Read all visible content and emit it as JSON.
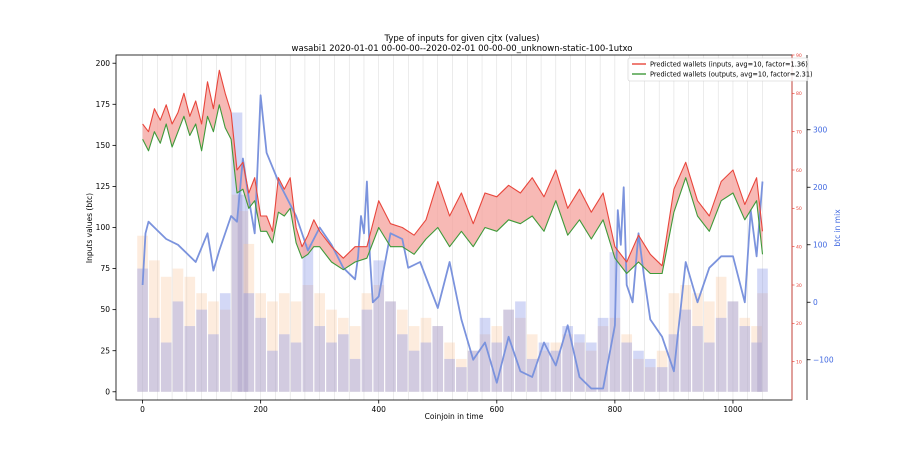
{
  "chart_data": {
    "type": "line",
    "title": "Type of inputs for given cjtx (values)",
    "subtitle": "wasabi1 2020-01-01 00-00-00--2020-02-01 00-00-00_unknown-static-100-1utxo",
    "xlabel": "Coinjoin in time",
    "ylabel": "Inputs values (btc)",
    "y2label": "btc in mix",
    "xlim": [
      -45,
      1100
    ],
    "ylim": [
      -5,
      205
    ],
    "y2lim": [
      -170,
      430
    ],
    "y3lim": [
      0,
      90
    ],
    "x_ticks": [
      "0",
      "200",
      "400",
      "600",
      "800",
      "1000"
    ],
    "y_ticks": [
      "0",
      "25",
      "50",
      "75",
      "100",
      "125",
      "150",
      "175",
      "200"
    ],
    "y2_ticks": [
      "−100",
      "0",
      "100",
      "200",
      "300"
    ],
    "y3_ticks": [
      "10",
      "20",
      "30",
      "40",
      "50",
      "60",
      "70",
      "80",
      "90"
    ],
    "grid": "vertical",
    "legend_position": "top-right",
    "legend": [
      "Predicted wallets (inputs, avg=10, factor=1.36)",
      "Predicted wallets (outputs, avg=10, factor=2.31)"
    ],
    "colors": {
      "inputs": "#e8463c",
      "outputs": "#3f9a3a",
      "fill": "#f4a29c",
      "btc_in_mix": "#7b93dd",
      "bars": "#8090e6",
      "bars_light": "#f8c9a0",
      "grid": "#d8d8d8"
    },
    "series": [
      {
        "role": "inputs",
        "axis": "right-inner",
        "x": [
          0,
          10,
          20,
          30,
          40,
          50,
          60,
          70,
          80,
          90,
          100,
          110,
          120,
          130,
          140,
          150,
          160,
          170,
          180,
          190,
          200,
          210,
          220,
          230,
          240,
          250,
          260,
          270,
          280,
          290,
          300,
          320,
          340,
          360,
          380,
          400,
          420,
          440,
          460,
          480,
          500,
          520,
          540,
          560,
          580,
          600,
          620,
          640,
          660,
          680,
          700,
          720,
          740,
          760,
          780,
          800,
          820,
          840,
          860,
          880,
          900,
          920,
          940,
          960,
          980,
          1000,
          1020,
          1040,
          1050
        ],
        "values": [
          72,
          70,
          76,
          73,
          77,
          72,
          75,
          80,
          74,
          78,
          72,
          83,
          76,
          86,
          80,
          75,
          60,
          62,
          54,
          58,
          48,
          48,
          44,
          58,
          55,
          58,
          45,
          40,
          43,
          47,
          44,
          40,
          37,
          40,
          40,
          52,
          46,
          45,
          43,
          47,
          57,
          48,
          54,
          46,
          54,
          53,
          56,
          54,
          58,
          53,
          60,
          50,
          55,
          49,
          54,
          40,
          36,
          43,
          38,
          35,
          55,
          62,
          52,
          48,
          57,
          60,
          51,
          58,
          44
        ]
      },
      {
        "role": "outputs",
        "axis": "right-inner",
        "x": [
          0,
          10,
          20,
          30,
          40,
          50,
          60,
          70,
          80,
          90,
          100,
          110,
          120,
          130,
          140,
          150,
          160,
          170,
          180,
          190,
          200,
          210,
          220,
          230,
          240,
          250,
          260,
          270,
          280,
          290,
          300,
          320,
          340,
          360,
          380,
          400,
          420,
          440,
          460,
          480,
          500,
          520,
          540,
          560,
          580,
          600,
          620,
          640,
          660,
          680,
          700,
          720,
          740,
          760,
          780,
          800,
          820,
          840,
          860,
          880,
          900,
          920,
          940,
          960,
          980,
          1000,
          1020,
          1040,
          1050
        ],
        "values": [
          68,
          65,
          70,
          67,
          72,
          66,
          70,
          74,
          69,
          72,
          65,
          74,
          70,
          77,
          71,
          68,
          54,
          55,
          50,
          52,
          44,
          44,
          41,
          49,
          48,
          50,
          41,
          37,
          38,
          40,
          40,
          36,
          34,
          36,
          37,
          45,
          40,
          40,
          38,
          42,
          45,
          40,
          44,
          40,
          45,
          44,
          47,
          46,
          48,
          44,
          52,
          43,
          47,
          42,
          47,
          37,
          33,
          36,
          33,
          33,
          49,
          58,
          48,
          44,
          52,
          54,
          47,
          52,
          38
        ]
      },
      {
        "role": "btc_in_mix",
        "axis": "right",
        "x": [
          0,
          5,
          10,
          20,
          40,
          60,
          90,
          110,
          120,
          130,
          150,
          160,
          170,
          180,
          190,
          200,
          210,
          230,
          260,
          280,
          300,
          320,
          340,
          360,
          365,
          370,
          375,
          380,
          385,
          390,
          400,
          420,
          440,
          450,
          470,
          500,
          520,
          540,
          560,
          580,
          600,
          620,
          640,
          660,
          680,
          700,
          720,
          740,
          760,
          780,
          800,
          805,
          810,
          815,
          820,
          830,
          840,
          850,
          860,
          880,
          900,
          920,
          940,
          960,
          980,
          1000,
          1020,
          1030,
          1040,
          1050
        ],
        "values": [
          30,
          120,
          140,
          130,
          110,
          100,
          70,
          120,
          55,
          90,
          150,
          140,
          250,
          180,
          120,
          360,
          260,
          210,
          150,
          90,
          130,
          100,
          60,
          40,
          80,
          150,
          120,
          210,
          80,
          0,
          10,
          120,
          110,
          60,
          70,
          -10,
          70,
          -30,
          -100,
          -70,
          -140,
          -60,
          -120,
          -130,
          -70,
          -110,
          -40,
          -130,
          -150,
          -150,
          -40,
          160,
          100,
          200,
          30,
          0,
          120,
          40,
          -30,
          -60,
          -120,
          70,
          0,
          60,
          80,
          80,
          0,
          160,
          80,
          210
        ]
      }
    ],
    "bars": {
      "x": [
        0,
        20,
        40,
        60,
        80,
        100,
        120,
        140,
        160,
        170,
        180,
        200,
        220,
        240,
        260,
        280,
        300,
        320,
        340,
        360,
        380,
        400,
        420,
        440,
        460,
        480,
        500,
        520,
        540,
        560,
        580,
        600,
        620,
        640,
        660,
        680,
        700,
        720,
        740,
        760,
        780,
        800,
        820,
        840,
        860,
        880,
        900,
        920,
        940,
        960,
        980,
        1000,
        1020,
        1040,
        1050
      ],
      "values": [
        75,
        45,
        30,
        55,
        40,
        50,
        35,
        60,
        170,
        120,
        60,
        45,
        25,
        35,
        30,
        90,
        40,
        30,
        35,
        20,
        50,
        80,
        55,
        35,
        25,
        30,
        40,
        20,
        15,
        25,
        45,
        30,
        50,
        55,
        20,
        30,
        25,
        40,
        35,
        30,
        45,
        85,
        30,
        25,
        20,
        15,
        35,
        50,
        40,
        30,
        45,
        55,
        40,
        30,
        75
      ],
      "light_values": [
        95,
        80,
        70,
        75,
        70,
        60,
        55,
        50,
        120,
        110,
        90,
        60,
        55,
        60,
        55,
        65,
        60,
        50,
        45,
        40,
        60,
        65,
        55,
        50,
        40,
        45,
        40,
        30,
        20,
        25,
        35,
        40,
        50,
        45,
        35,
        25,
        30,
        35,
        30,
        25,
        40,
        45,
        35,
        20,
        15,
        25,
        60,
        65,
        60,
        55,
        70,
        55,
        45,
        40,
        60
      ]
    }
  }
}
